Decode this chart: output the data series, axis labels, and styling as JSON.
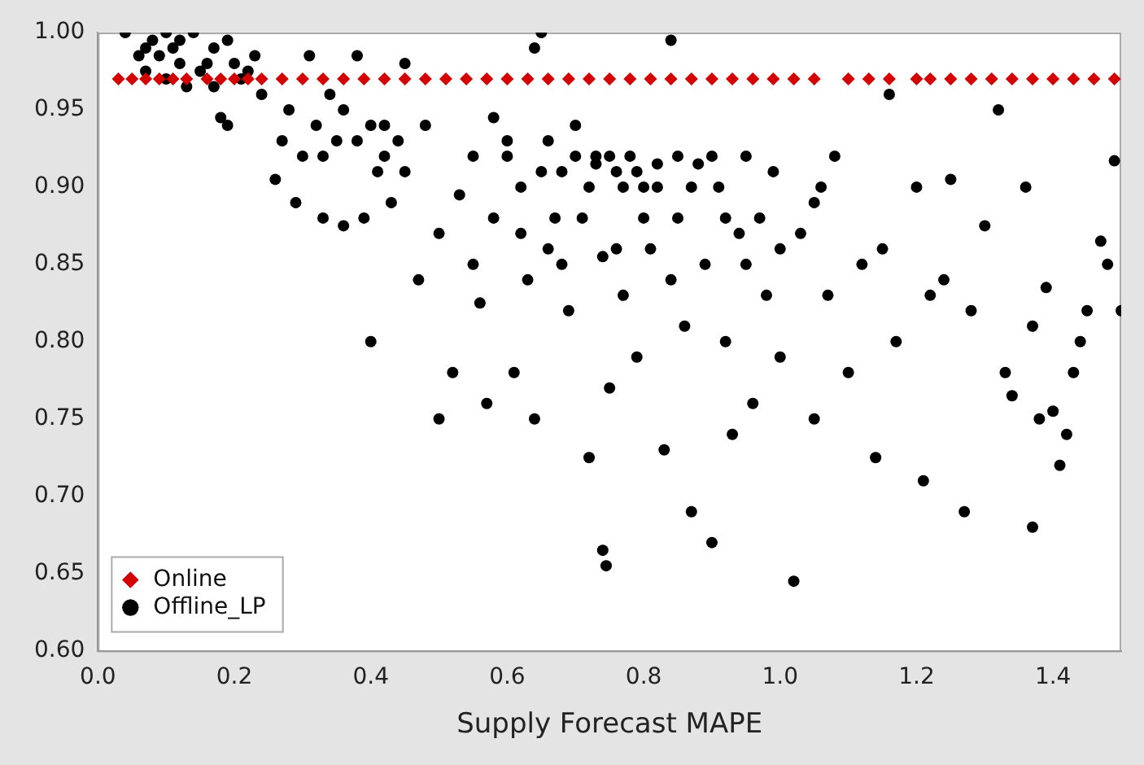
{
  "chart_data": {
    "type": "scatter",
    "xlabel": "Supply Forecast MAPE",
    "xlim": [
      0,
      1.5
    ],
    "ylim": [
      0.6,
      1.0
    ],
    "xticks": [
      {
        "value": 0,
        "label": "0.0"
      },
      {
        "value": 0.2,
        "label": "0.2"
      },
      {
        "value": 0.4,
        "label": "0.4"
      },
      {
        "value": 0.6,
        "label": "0.6"
      },
      {
        "value": 0.8,
        "label": "0.8"
      },
      {
        "value": 1,
        "label": "1.0"
      },
      {
        "value": 1.2,
        "label": "1.2"
      },
      {
        "value": 1.4,
        "label": "1.4"
      }
    ],
    "yticks": [
      {
        "value": 0.6,
        "label": "0.60"
      },
      {
        "value": 0.65,
        "label": "0.65"
      },
      {
        "value": 0.7,
        "label": "0.70"
      },
      {
        "value": 0.75,
        "label": "0.75"
      },
      {
        "value": 0.8,
        "label": "0.80"
      },
      {
        "value": 0.85,
        "label": "0.85"
      },
      {
        "value": 0.9,
        "label": "0.90"
      },
      {
        "value": 0.95,
        "label": "0.95"
      },
      {
        "value": 1,
        "label": "1.00"
      }
    ],
    "grid": false,
    "legend": "bottom left",
    "series": [
      {
        "name": "Online",
        "color": "#d40000",
        "marker": "diamond",
        "x": [
          0.03,
          0.05,
          0.07,
          0.09,
          0.11,
          0.13,
          0.16,
          0.18,
          0.2,
          0.22,
          0.24,
          0.27,
          0.3,
          0.33,
          0.36,
          0.39,
          0.42,
          0.45,
          0.48,
          0.51,
          0.54,
          0.57,
          0.6,
          0.63,
          0.66,
          0.69,
          0.72,
          0.75,
          0.78,
          0.81,
          0.84,
          0.87,
          0.9,
          0.93,
          0.96,
          0.99,
          1.02,
          1.05,
          1.1,
          1.13,
          1.16,
          1.2,
          1.22,
          1.25,
          1.28,
          1.31,
          1.34,
          1.37,
          1.4,
          1.43,
          1.46,
          1.49
        ],
        "values": [
          0.97,
          0.97,
          0.97,
          0.97,
          0.97,
          0.97,
          0.97,
          0.97,
          0.97,
          0.97,
          0.97,
          0.97,
          0.97,
          0.97,
          0.97,
          0.97,
          0.97,
          0.97,
          0.97,
          0.97,
          0.97,
          0.97,
          0.97,
          0.97,
          0.97,
          0.97,
          0.97,
          0.97,
          0.97,
          0.97,
          0.97,
          0.97,
          0.97,
          0.97,
          0.97,
          0.97,
          0.97,
          0.97,
          0.97,
          0.97,
          0.97,
          0.97,
          0.97,
          0.97,
          0.97,
          0.97,
          0.97,
          0.97,
          0.97,
          0.97,
          0.97,
          0.97
        ]
      },
      {
        "name": "Offline_LP",
        "color": "#000000",
        "marker": "circle",
        "x": [
          0.04,
          0.07,
          0.08,
          0.09,
          0.1,
          0.11,
          0.12,
          0.1,
          0.06,
          0.13,
          0.15,
          0.16,
          0.17,
          0.18,
          0.19,
          0.2,
          0.21,
          0.22,
          0.23,
          0.24,
          0.17,
          0.14,
          0.19,
          0.07,
          0.12,
          0.27,
          0.26,
          0.28,
          0.29,
          0.3,
          0.31,
          0.32,
          0.33,
          0.33,
          0.34,
          0.35,
          0.36,
          0.36,
          0.38,
          0.38,
          0.39,
          0.4,
          0.41,
          0.42,
          0.4,
          0.42,
          0.43,
          0.44,
          0.45,
          0.45,
          0.47,
          0.48,
          0.5,
          0.5,
          0.52,
          0.53,
          0.55,
          0.56,
          0.57,
          0.58,
          0.6,
          0.61,
          0.62,
          0.63,
          0.64,
          0.65,
          0.64,
          0.66,
          0.66,
          0.68,
          0.69,
          0.7,
          0.71,
          0.72,
          0.72,
          0.73,
          0.74,
          0.74,
          0.745,
          0.75,
          0.76,
          0.77,
          0.78,
          0.79,
          0.8,
          0.81,
          0.82,
          0.83,
          0.84,
          0.85,
          0.86,
          0.87,
          0.88,
          0.89,
          0.9,
          0.91,
          0.92,
          0.93,
          0.94,
          0.95,
          0.96,
          0.98,
          0.99,
          1.0,
          1.02,
          1.03,
          1.05,
          1.06,
          1.07,
          1.08,
          1.1,
          1.12,
          1.14,
          1.15,
          1.16,
          1.17,
          1.2,
          1.21,
          1.22,
          1.24,
          1.25,
          1.27,
          1.28,
          1.3,
          1.32,
          1.33,
          1.34,
          1.36,
          1.37,
          1.37,
          1.38,
          1.39,
          1.4,
          1.41,
          1.42,
          1.43,
          1.44,
          1.45,
          1.47,
          1.49,
          1.5,
          1.48,
          0.6,
          0.62,
          0.65,
          0.67,
          0.7,
          0.73,
          0.75,
          0.77,
          0.79,
          0.8,
          0.82,
          0.85,
          0.87,
          0.9,
          0.76,
          0.68,
          0.55,
          0.58,
          0.84,
          0.95,
          0.97,
          1.0,
          1.05,
          0.92
        ],
        "values": [
          1.0,
          0.99,
          0.995,
          0.985,
          1.0,
          0.99,
          0.98,
          0.97,
          0.985,
          0.965,
          0.975,
          0.98,
          0.99,
          0.945,
          0.94,
          0.98,
          0.97,
          0.975,
          0.985,
          0.96,
          0.965,
          1.0,
          0.995,
          0.975,
          0.995,
          0.93,
          0.905,
          0.95,
          0.89,
          0.92,
          0.985,
          0.94,
          0.92,
          0.88,
          0.96,
          0.93,
          0.95,
          0.875,
          0.985,
          0.93,
          0.88,
          0.94,
          0.91,
          0.92,
          0.8,
          0.94,
          0.89,
          0.93,
          0.98,
          0.91,
          0.84,
          0.94,
          0.87,
          0.75,
          0.78,
          0.895,
          0.92,
          0.825,
          0.76,
          0.945,
          0.92,
          0.78,
          0.9,
          0.84,
          0.75,
          1.0,
          0.99,
          0.93,
          0.86,
          0.91,
          0.82,
          0.94,
          0.88,
          0.725,
          0.9,
          0.92,
          0.855,
          0.665,
          0.655,
          0.77,
          0.91,
          0.83,
          0.92,
          0.79,
          0.9,
          0.86,
          0.915,
          0.73,
          0.995,
          0.88,
          0.81,
          0.69,
          0.915,
          0.85,
          0.67,
          0.9,
          0.8,
          0.74,
          0.87,
          0.92,
          0.76,
          0.83,
          0.91,
          0.79,
          0.645,
          0.87,
          0.75,
          0.9,
          0.83,
          0.92,
          0.78,
          0.85,
          0.725,
          0.86,
          0.96,
          0.8,
          0.9,
          0.71,
          0.83,
          0.84,
          0.905,
          0.69,
          0.82,
          0.875,
          0.95,
          0.78,
          0.765,
          0.9,
          0.81,
          0.68,
          0.75,
          0.835,
          0.755,
          0.72,
          0.74,
          0.78,
          0.8,
          0.82,
          0.865,
          0.917,
          0.82,
          0.85,
          0.93,
          0.87,
          0.91,
          0.88,
          0.92,
          0.915,
          0.92,
          0.9,
          0.91,
          0.88,
          0.9,
          0.92,
          0.9,
          0.92,
          0.86,
          0.85,
          0.85,
          0.88,
          0.84,
          0.85,
          0.88,
          0.86,
          0.89,
          0.88
        ]
      }
    ]
  }
}
